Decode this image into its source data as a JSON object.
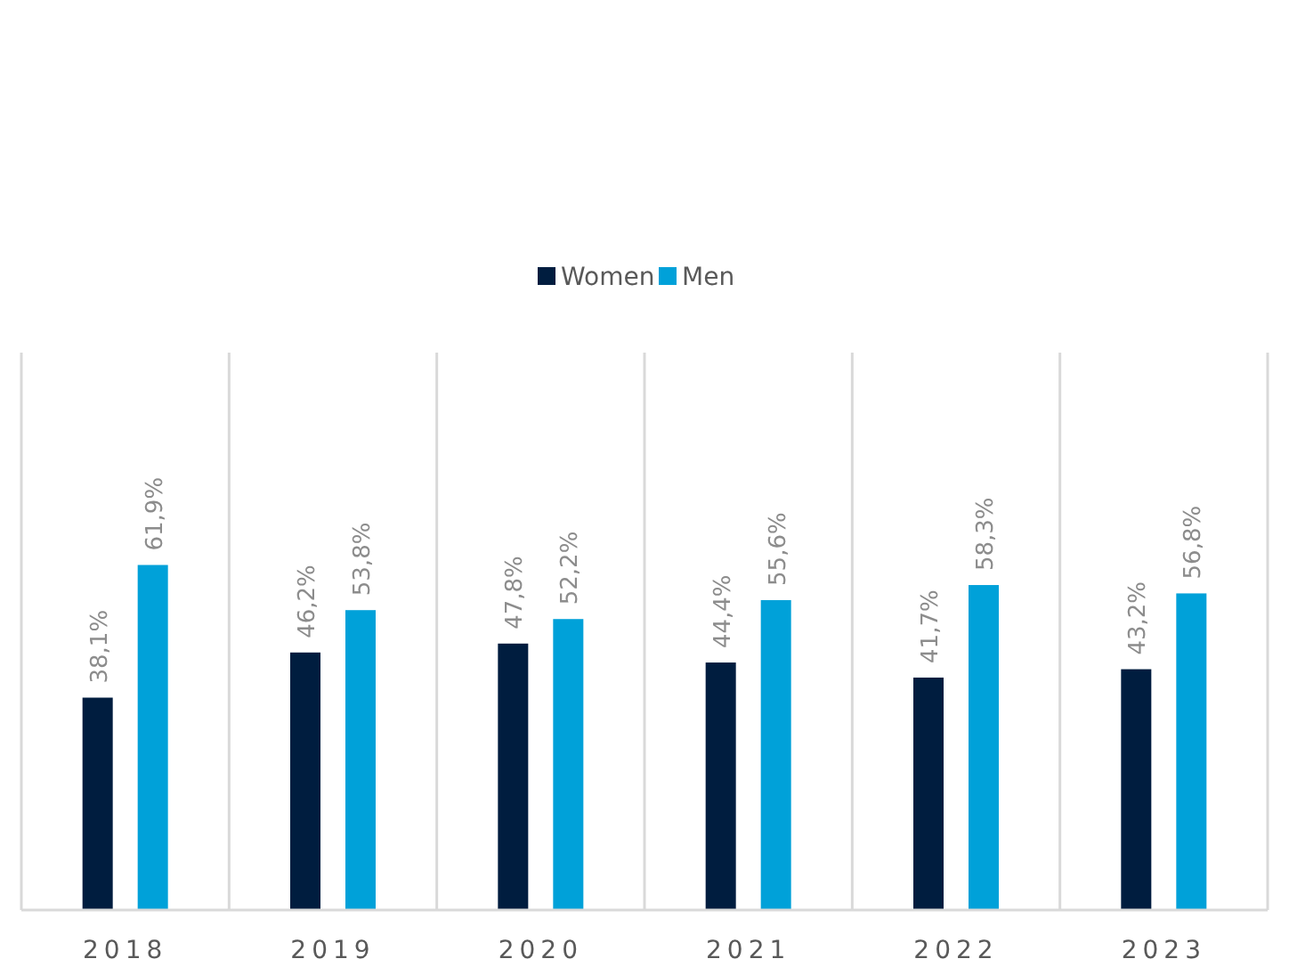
{
  "chart_data": {
    "type": "bar",
    "categories": [
      "2018",
      "2019",
      "2020",
      "2021",
      "2022",
      "2023"
    ],
    "series": [
      {
        "name": "Women",
        "color": "#001d3f",
        "values": [
          38.1,
          46.2,
          47.8,
          44.4,
          41.7,
          43.2
        ],
        "value_labels": [
          "38,1%",
          "46,2%",
          "47,8%",
          "44,4%",
          "41,7%",
          "43,2%"
        ]
      },
      {
        "name": "Men",
        "color": "#00a1d9",
        "values": [
          61.9,
          53.8,
          52.2,
          55.6,
          58.3,
          56.8
        ],
        "value_labels": [
          "61,9%",
          "53,8%",
          "52,2%",
          "55,6%",
          "58,3%",
          "56,8%"
        ]
      }
    ],
    "ylim": [
      0,
      100
    ],
    "grid": "x",
    "legend": "top",
    "tick_labels": "x"
  }
}
